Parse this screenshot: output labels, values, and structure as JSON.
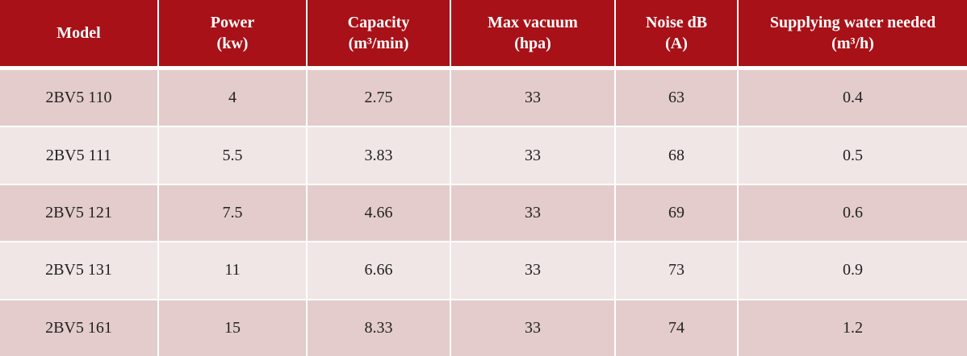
{
  "table": {
    "columns": [
      {
        "line1": "Model",
        "line2": ""
      },
      {
        "line1": "Power",
        "line2": "(kw)"
      },
      {
        "line1": "Capacity",
        "line2": "(m³/min)"
      },
      {
        "line1": "Max vacuum",
        "line2": "(hpa)"
      },
      {
        "line1": "Noise dB",
        "line2": "(A)"
      },
      {
        "line1": "Supplying water needed",
        "line2": "(m³/h)"
      }
    ],
    "rows": [
      [
        "2BV5 110",
        "4",
        "2.75",
        "33",
        "63",
        "0.4"
      ],
      [
        "2BV5 111",
        "5.5",
        "3.83",
        "33",
        "68",
        "0.5"
      ],
      [
        "2BV5 121",
        "7.5",
        "4.66",
        "33",
        "69",
        "0.6"
      ],
      [
        "2BV5 131",
        "11",
        "6.66",
        "33",
        "73",
        "0.9"
      ],
      [
        "2BV5 161",
        "15",
        "8.33",
        "33",
        "74",
        "1.2"
      ]
    ]
  },
  "colors": {
    "header_background": "#a81117",
    "header_text": "#ffffff",
    "row_dark": "#e3cccb",
    "row_light": "#f0e6e5"
  }
}
